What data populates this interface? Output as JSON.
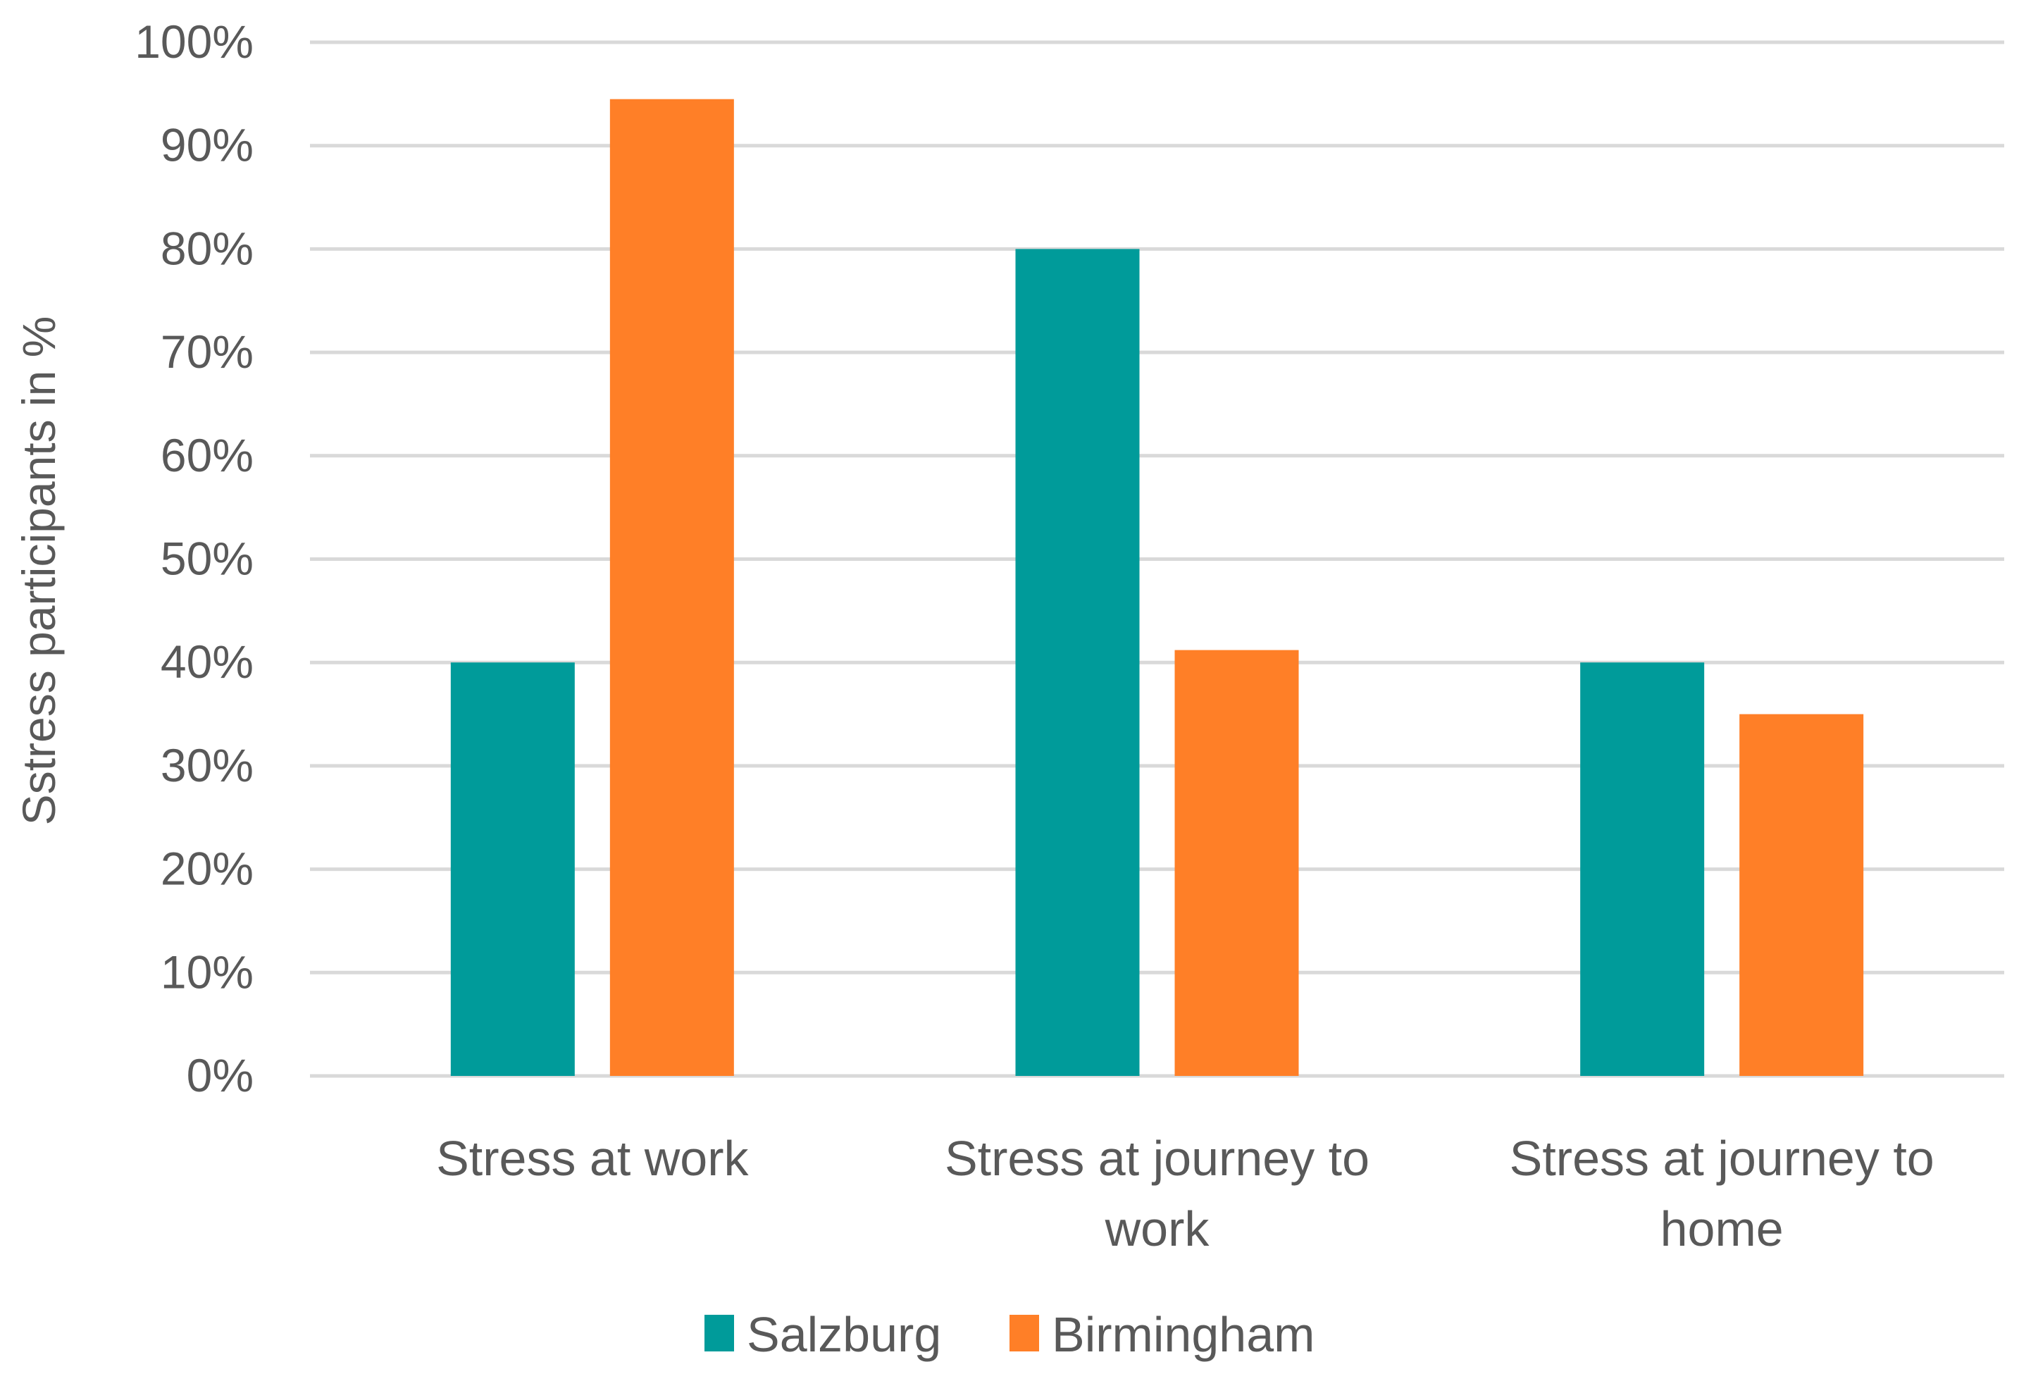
{
  "chart_data": {
    "type": "bar",
    "title": "",
    "xlabel": "",
    "ylabel": "Sstress participants in %",
    "ylim": [
      0,
      100
    ],
    "yticks": [
      "0%",
      "10%",
      "20%",
      "30%",
      "40%",
      "50%",
      "60%",
      "70%",
      "80%",
      "90%",
      "100%"
    ],
    "y_tick_values": [
      0,
      10,
      20,
      30,
      40,
      50,
      60,
      70,
      80,
      90,
      100
    ],
    "categories": [
      [
        "Stress at work"
      ],
      [
        "Stress at journey to",
        "work"
      ],
      [
        "Stress at journey to",
        "home"
      ]
    ],
    "series": [
      {
        "name": "Salzburg",
        "color": "#009B9A",
        "values": [
          40,
          80,
          40
        ]
      },
      {
        "name": "Birmingham",
        "color": "#FF7F27",
        "values": [
          94.5,
          41.2,
          35
        ]
      }
    ],
    "grid": true,
    "legend_position": "bottom"
  }
}
